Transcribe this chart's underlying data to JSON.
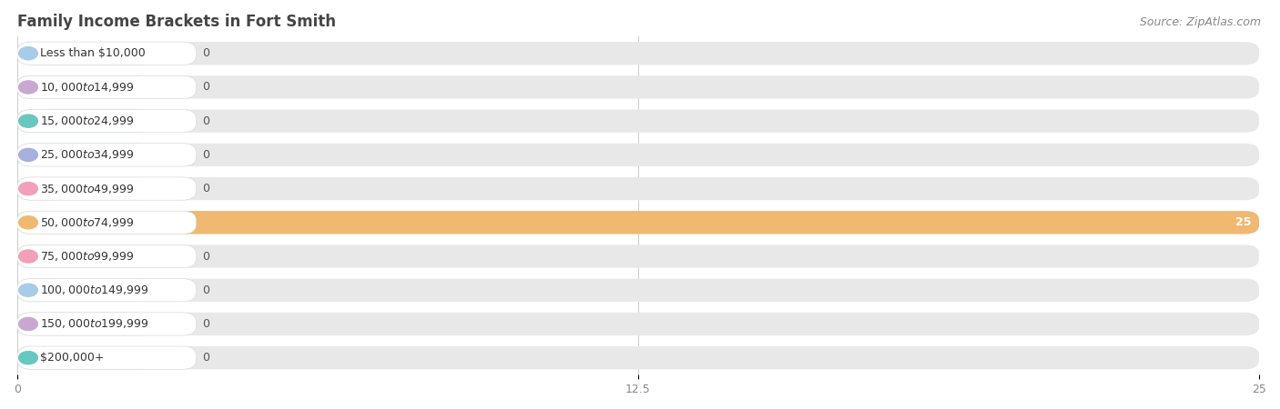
{
  "title": "Family Income Brackets in Fort Smith",
  "source": "Source: ZipAtlas.com",
  "categories": [
    "Less than $10,000",
    "$10,000 to $14,999",
    "$15,000 to $24,999",
    "$25,000 to $34,999",
    "$35,000 to $49,999",
    "$50,000 to $74,999",
    "$75,000 to $99,999",
    "$100,000 to $149,999",
    "$150,000 to $199,999",
    "$200,000+"
  ],
  "values": [
    0,
    0,
    0,
    0,
    0,
    25,
    0,
    0,
    0,
    0
  ],
  "bar_colors": [
    "#a8cce8",
    "#c8a8d0",
    "#68c8c0",
    "#a8b0e0",
    "#f0a0b8",
    "#f0b870",
    "#f0a0b8",
    "#a8cce8",
    "#c8a8d0",
    "#68c8c0"
  ],
  "background_color": "#ffffff",
  "bar_bg_color": "#e8e8e8",
  "label_bg_color": "#ffffff",
  "xlim": [
    0,
    25
  ],
  "xticks": [
    0,
    12.5,
    25
  ],
  "title_fontsize": 12,
  "source_fontsize": 9,
  "label_fontsize": 9,
  "value_fontsize": 9
}
